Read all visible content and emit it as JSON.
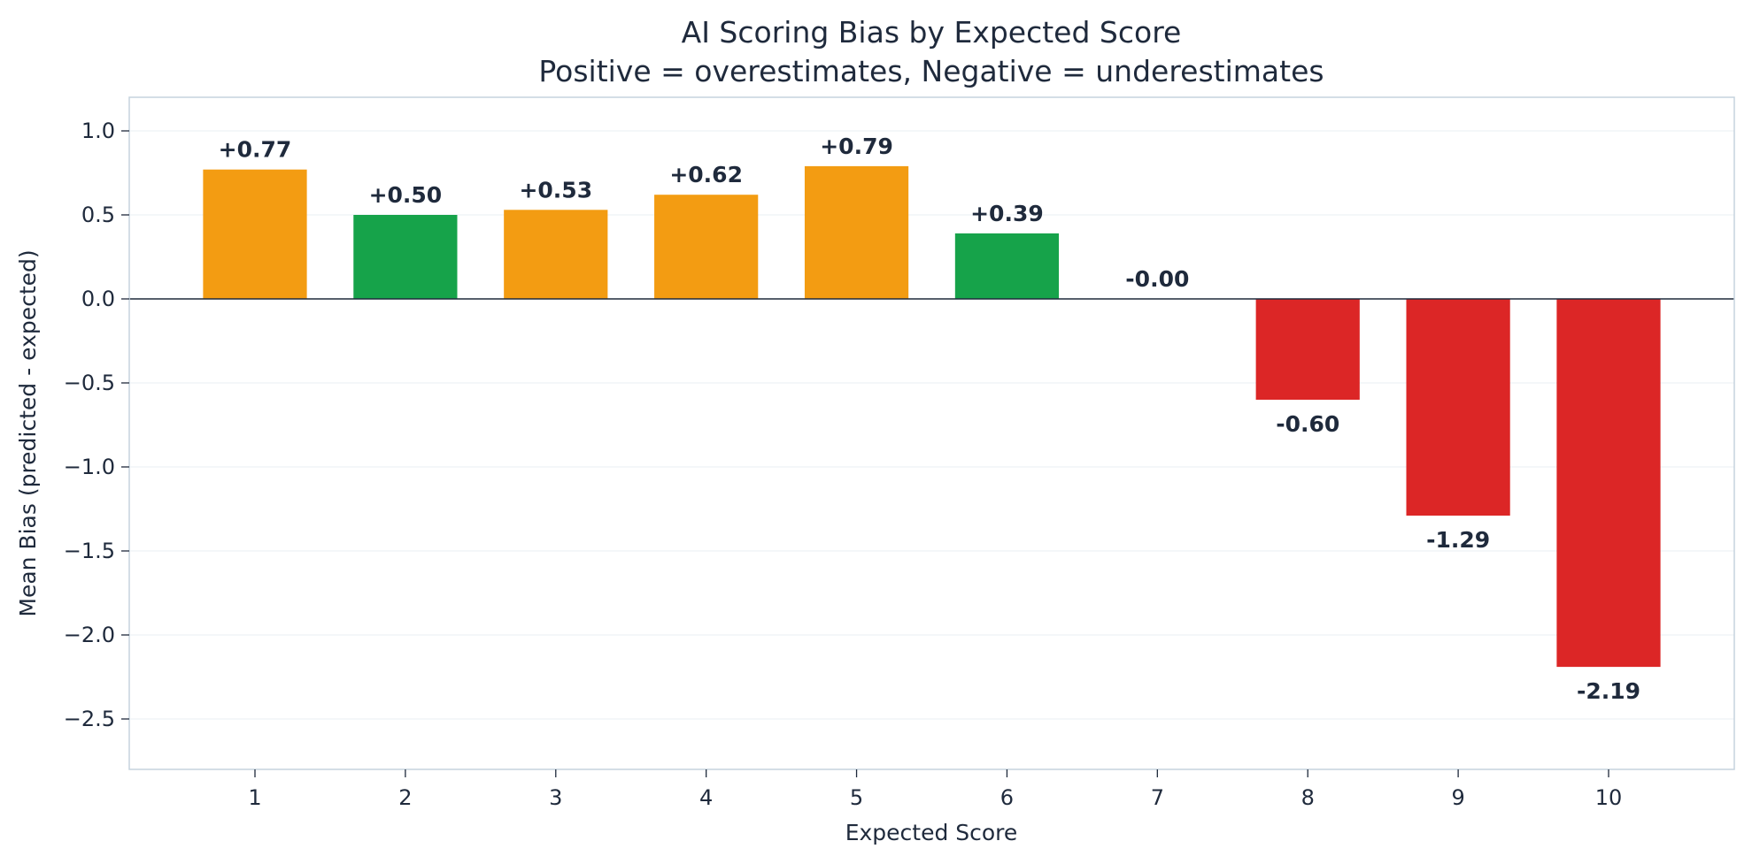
{
  "chart_data": {
    "type": "bar",
    "title": "AI Scoring Bias by Expected Score",
    "subtitle": "Positive = overestimates, Negative = underestimates",
    "xlabel": "Expected Score",
    "ylabel": "Mean Bias (predicted - expected)",
    "categories": [
      "1",
      "2",
      "3",
      "4",
      "5",
      "6",
      "7",
      "8",
      "9",
      "10"
    ],
    "values": [
      0.77,
      0.5,
      0.53,
      0.62,
      0.79,
      0.39,
      0.0,
      -0.6,
      -1.29,
      -2.19
    ],
    "data_labels": [
      "+0.77",
      "+0.50",
      "+0.53",
      "+0.62",
      "+0.79",
      "+0.39",
      "-0.00",
      "-0.60",
      "-1.29",
      "-2.19"
    ],
    "bar_colors": [
      "#f39c12",
      "#16a34a",
      "#f39c12",
      "#f39c12",
      "#f39c12",
      "#16a34a",
      "#16a34a",
      "#dc2626",
      "#dc2626",
      "#dc2626"
    ],
    "ylim": [
      -2.8,
      1.2
    ],
    "yticks": [
      1.0,
      0.5,
      0.0,
      -0.5,
      -1.0,
      -1.5,
      -2.0,
      -2.5
    ],
    "ytick_labels": [
      "1.0",
      "0.5",
      "0.0",
      "−0.5",
      "−1.0",
      "−1.5",
      "−2.0",
      "−2.5"
    ],
    "grid": true,
    "zero_line": true,
    "colors": {
      "text": "#1f2a3c",
      "frame": "#c5d3de",
      "grid": "#eef2f5",
      "zero_line": "#1f2a3c"
    }
  }
}
